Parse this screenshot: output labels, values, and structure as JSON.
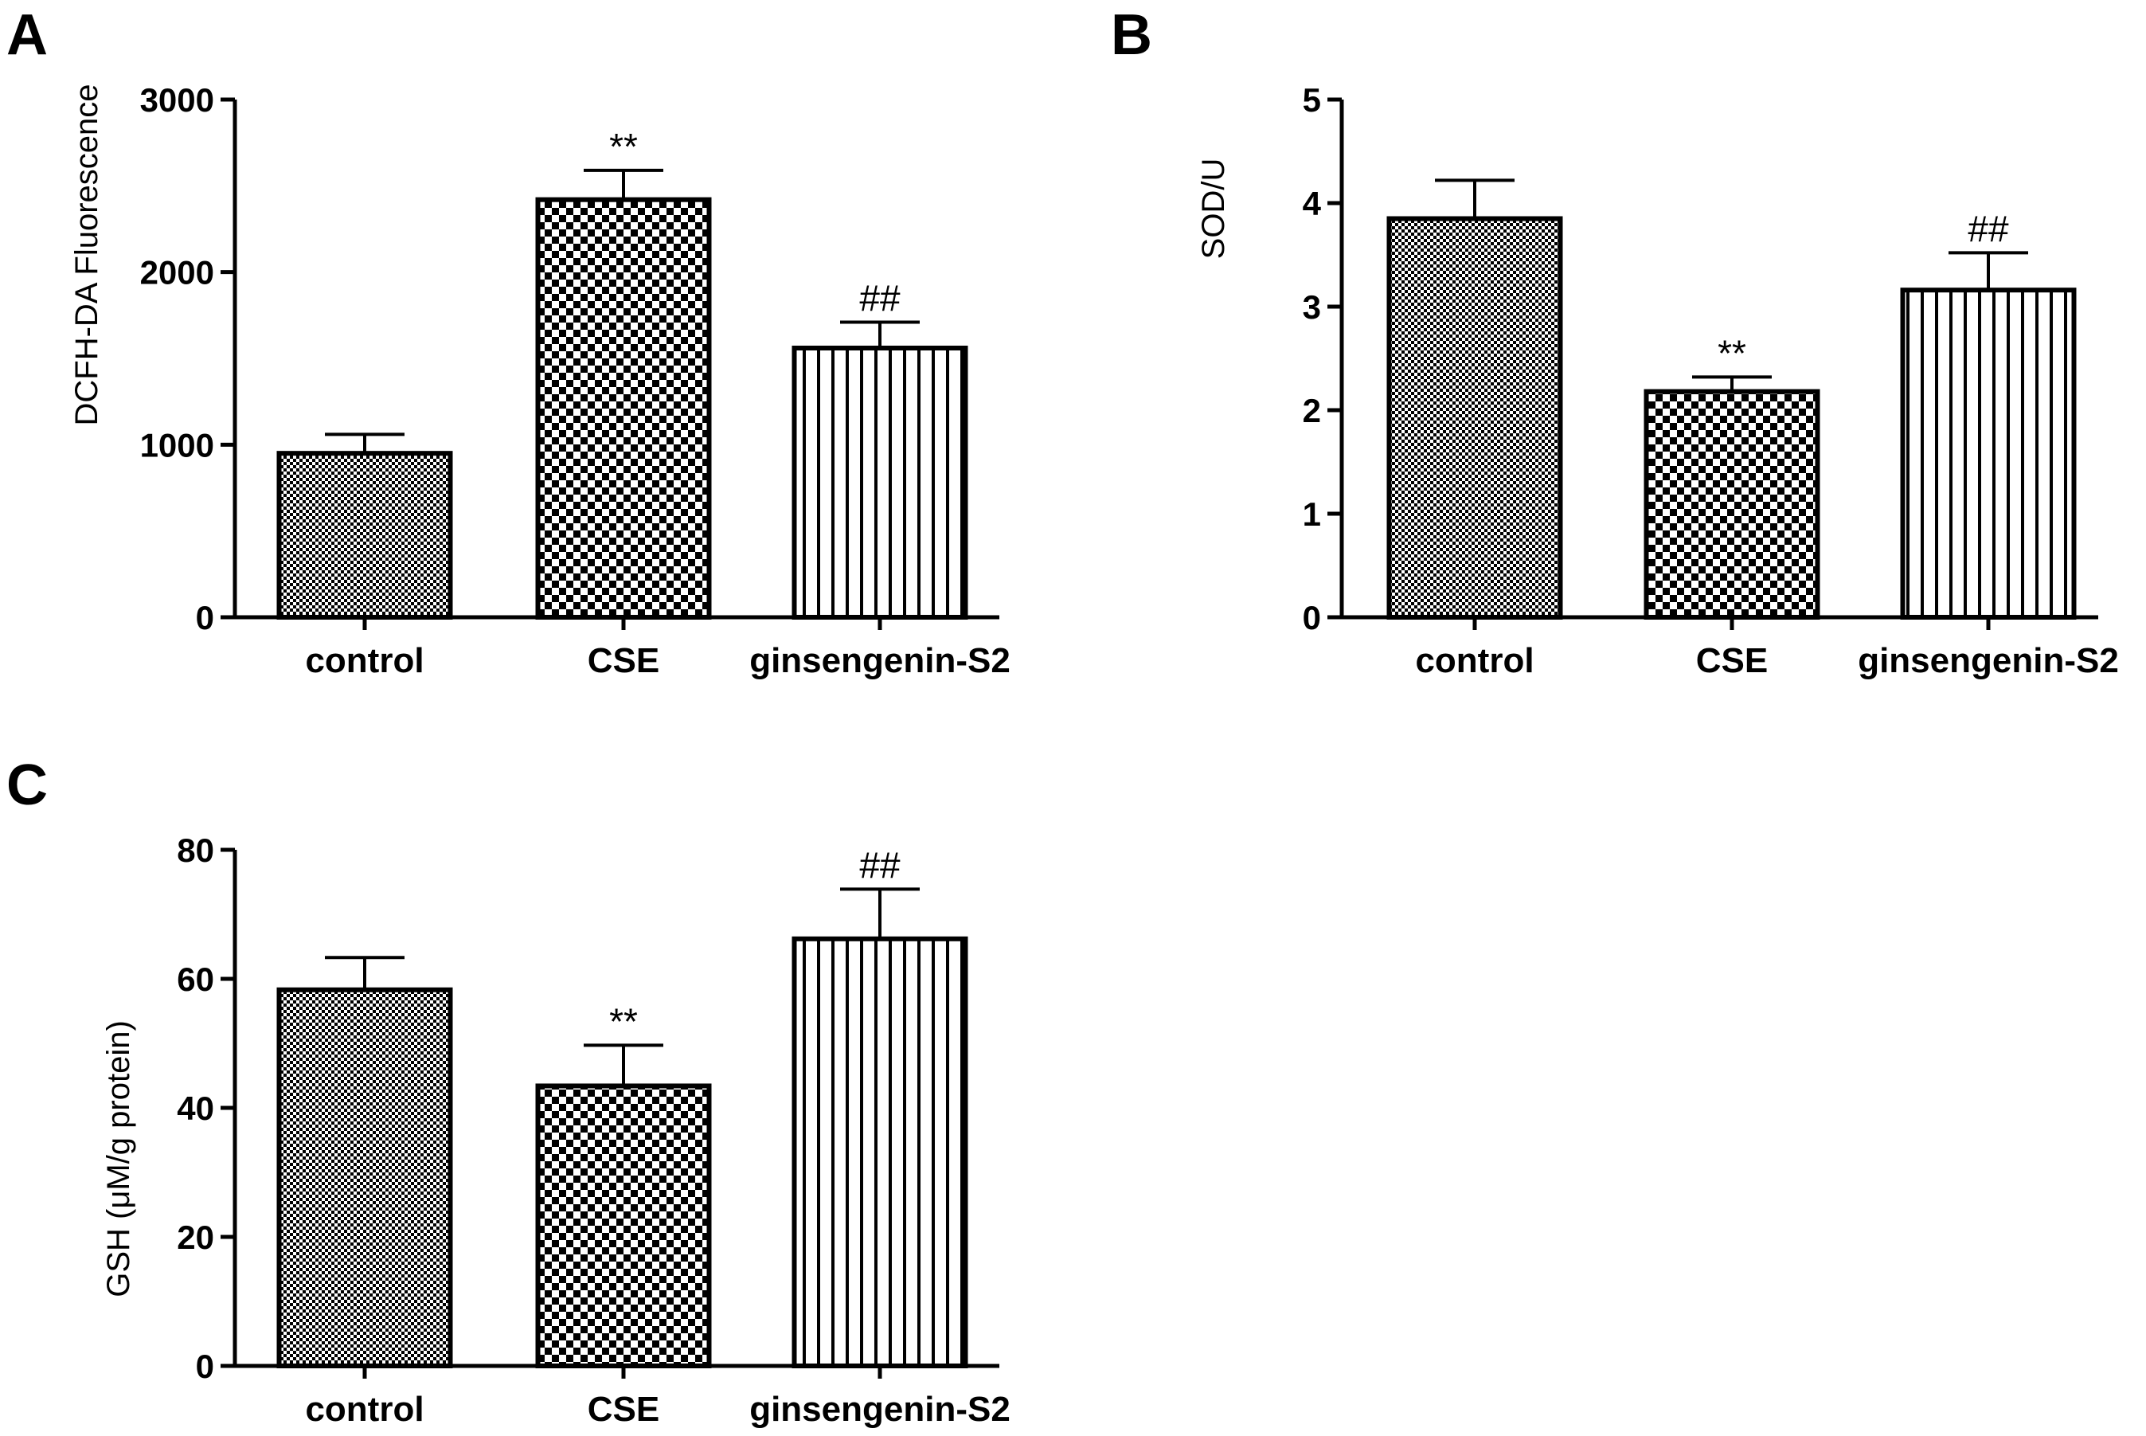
{
  "chart_data": [
    {
      "panel": "A",
      "type": "bar",
      "categories": [
        "control",
        "CSE",
        "ginsengenin-S2"
      ],
      "values": [
        950,
        2420,
        1560
      ],
      "errors": [
        110,
        170,
        150
      ],
      "annotations": [
        "",
        "**",
        "##"
      ],
      "patterns": [
        "fine-check",
        "coarse-check",
        "vstripe"
      ],
      "ylabel": "DCFH-DA Fluorescence",
      "ylim": [
        0,
        3000
      ],
      "yticks": [
        "0",
        "1000",
        "2000",
        "3000"
      ]
    },
    {
      "panel": "B",
      "type": "bar",
      "categories": [
        "control",
        "CSE",
        "ginsengenin-S2"
      ],
      "values": [
        3.85,
        2.18,
        3.16
      ],
      "errors": [
        0.37,
        0.14,
        0.36
      ],
      "annotations": [
        "",
        "**",
        "##"
      ],
      "patterns": [
        "fine-check",
        "coarse-check",
        "vstripe"
      ],
      "ylabel": "SOD/U",
      "ylim": [
        0,
        5
      ],
      "yticks": [
        "0",
        "1",
        "2",
        "3",
        "4",
        "5"
      ]
    },
    {
      "panel": "C",
      "type": "bar",
      "categories": [
        "control",
        "CSE",
        "ginsengenin-S2"
      ],
      "values": [
        58.3,
        43.4,
        66.2
      ],
      "errors": [
        5.0,
        6.3,
        7.7
      ],
      "annotations": [
        "",
        "**",
        "##"
      ],
      "patterns": [
        "fine-check",
        "coarse-check",
        "vstripe"
      ],
      "ylabel": "GSH (μM/g protein)",
      "ylim": [
        0,
        80
      ],
      "yticks": [
        "0",
        "20",
        "40",
        "60",
        "80"
      ]
    }
  ]
}
